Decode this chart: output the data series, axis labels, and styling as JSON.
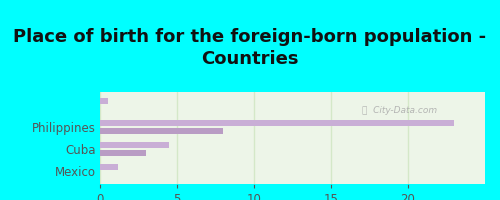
{
  "title": "Place of birth for the foreign-born population -\nCountries",
  "categories": [
    "",
    "Philippines",
    "Cuba",
    "Mexico"
  ],
  "bars_upper": [
    0.5,
    23.0,
    4.5,
    1.2
  ],
  "bars_lower": [
    0.0,
    8.0,
    3.0,
    0.0
  ],
  "bar_color_upper": "#c9aed6",
  "bar_color_lower": "#b99cc4",
  "bg_title": "#00ffff",
  "bg_chart": "#edf5e8",
  "xlim": [
    0,
    25
  ],
  "xticks": [
    0,
    5,
    10,
    15,
    20
  ],
  "grid_color": "#d4e8c8",
  "label_color": "#555555",
  "title_color": "#111111",
  "watermark": "ⓘ  City-Data.com",
  "title_fontsize": 13,
  "tick_fontsize": 8.5,
  "label_fontsize": 8.5
}
